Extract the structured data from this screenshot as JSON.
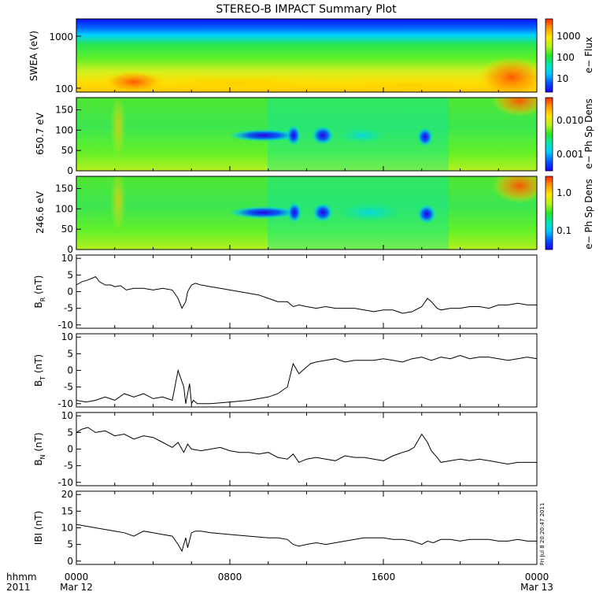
{
  "title": "STEREO-B IMPACT Summary Plot",
  "footer": {
    "hhmm": "hhmm",
    "year": "2011",
    "x_ticks": [
      "0000",
      "0800",
      "1600",
      "0000"
    ],
    "x_sub": [
      "Mar 12",
      "",
      "",
      "Mar 13"
    ]
  },
  "stamp": "Fri Jul 8 20:20:47 2011",
  "colorbars": {
    "swea": {
      "label": "e− Flux",
      "ticks": [
        "1000",
        "100",
        "10"
      ]
    },
    "p650": {
      "label": "e− Ph Sp Dens",
      "ticks": [
        "0.010",
        "0.001"
      ]
    },
    "p246": {
      "label": "e− Ph Sp Dens",
      "ticks": [
        "1.0",
        "0.1"
      ]
    }
  },
  "colors": {
    "frame": "#000000",
    "line": "#000000",
    "colormap": [
      "#1a00ff",
      "#0050ff",
      "#00c8ff",
      "#00e6b4",
      "#28e628",
      "#b4f01e",
      "#ffe600",
      "#ff9600",
      "#ff2800"
    ]
  },
  "chart_data": [
    {
      "type": "heatmap",
      "name": "swea",
      "ylabel": "SWEA (eV)",
      "yticks": [
        "1000",
        "100"
      ],
      "x_hours": [
        0,
        24
      ]
    },
    {
      "type": "heatmap",
      "name": "p650",
      "ylabel": "650.7 eV",
      "yticks": [
        "150",
        "100",
        "50",
        "0"
      ],
      "ylim": [
        0,
        180
      ]
    },
    {
      "type": "heatmap",
      "name": "p246",
      "ylabel": "246.6 eV",
      "yticks": [
        "150",
        "100",
        "50",
        "0"
      ],
      "ylim": [
        0,
        180
      ]
    },
    {
      "type": "line",
      "name": "br",
      "ylabel_main": "B",
      "ylabel_sub": "R",
      "ylabel_unit": " (nT)",
      "yticks": [
        "10",
        "5",
        "0",
        "-5",
        "-10"
      ],
      "ylim": [
        -11,
        11
      ],
      "x": [
        0,
        0.3,
        0.6,
        1.0,
        1.2,
        1.5,
        1.8,
        2.0,
        2.3,
        2.6,
        3.0,
        3.5,
        4.0,
        4.5,
        5.0,
        5.3,
        5.5,
        5.7,
        5.8,
        6.0,
        6.2,
        6.5,
        7.0,
        7.5,
        8.0,
        8.5,
        9.0,
        9.5,
        10.0,
        10.5,
        11.0,
        11.3,
        11.6,
        12.0,
        12.5,
        13.0,
        13.5,
        14.0,
        14.5,
        15.0,
        15.5,
        16.0,
        16.5,
        17.0,
        17.5,
        18.0,
        18.3,
        18.5,
        18.8,
        19.0,
        19.5,
        20.0,
        20.5,
        21.0,
        21.5,
        22.0,
        22.5,
        23.0,
        23.5,
        24.0
      ],
      "y": [
        2.0,
        3.0,
        3.5,
        4.5,
        3.0,
        2.0,
        2.0,
        1.5,
        1.8,
        0.5,
        1.0,
        1.0,
        0.5,
        1.0,
        0.5,
        -2.0,
        -5.0,
        -3.0,
        0.0,
        2.0,
        2.5,
        2.0,
        1.5,
        1.0,
        0.5,
        0.0,
        -0.5,
        -1.0,
        -2.0,
        -3.0,
        -3.0,
        -4.5,
        -4.0,
        -4.5,
        -5.0,
        -4.5,
        -5.0,
        -5.0,
        -5.0,
        -5.5,
        -6.0,
        -5.5,
        -5.5,
        -6.5,
        -6.0,
        -4.5,
        -2.0,
        -3.0,
        -5.0,
        -5.5,
        -5.0,
        -5.0,
        -4.5,
        -4.5,
        -5.0,
        -4.0,
        -4.0,
        -3.5,
        -4.0,
        -4.0
      ]
    },
    {
      "type": "line",
      "name": "bt",
      "ylabel_main": "B",
      "ylabel_sub": "T",
      "ylabel_unit": " (nT)",
      "yticks": [
        "10",
        "5",
        "0",
        "-5",
        "-10"
      ],
      "ylim": [
        -11,
        11
      ],
      "x": [
        0,
        0.5,
        1.0,
        1.5,
        2.0,
        2.5,
        3.0,
        3.5,
        4.0,
        4.5,
        5.0,
        5.3,
        5.6,
        5.7,
        5.9,
        6.0,
        6.1,
        6.3,
        6.5,
        7.0,
        8.0,
        9.0,
        10.0,
        10.5,
        11.0,
        11.3,
        11.6,
        11.8,
        12.0,
        12.2,
        12.5,
        13.0,
        13.5,
        14.0,
        14.5,
        15.0,
        15.5,
        16.0,
        16.5,
        17.0,
        17.5,
        18.0,
        18.5,
        19.0,
        19.5,
        20.0,
        20.5,
        21.0,
        21.5,
        22.0,
        22.5,
        23.0,
        23.5,
        24.0
      ],
      "y": [
        -9.0,
        -9.5,
        -9.0,
        -8.0,
        -9.0,
        -7.0,
        -8.0,
        -7.0,
        -8.5,
        -8.0,
        -9.0,
        0.0,
        -5.0,
        -10.0,
        -4.0,
        -10.0,
        -9.0,
        -10.0,
        -10.0,
        -10.0,
        -9.5,
        -9.0,
        -8.0,
        -7.0,
        -5.0,
        2.0,
        -1.0,
        0.0,
        1.0,
        2.0,
        2.5,
        3.0,
        3.5,
        2.5,
        3.0,
        3.0,
        3.0,
        3.5,
        3.0,
        2.5,
        3.5,
        4.0,
        3.0,
        4.0,
        3.5,
        4.5,
        3.5,
        4.0,
        4.0,
        3.5,
        3.0,
        3.5,
        4.0,
        3.5
      ]
    },
    {
      "type": "line",
      "name": "bn",
      "ylabel_main": "B",
      "ylabel_sub": "N",
      "ylabel_unit": " (nT)",
      "yticks": [
        "10",
        "5",
        "0",
        "-5",
        "-10"
      ],
      "ylim": [
        -11,
        11
      ],
      "x": [
        0,
        0.3,
        0.6,
        1.0,
        1.5,
        2.0,
        2.5,
        3.0,
        3.5,
        4.0,
        4.5,
        5.0,
        5.3,
        5.6,
        5.8,
        6.0,
        6.5,
        7.0,
        7.5,
        8.0,
        8.5,
        9.0,
        9.5,
        10.0,
        10.5,
        11.0,
        11.3,
        11.6,
        12.0,
        12.5,
        13.0,
        13.5,
        14.0,
        14.5,
        15.0,
        15.5,
        16.0,
        16.5,
        17.0,
        17.3,
        17.6,
        18.0,
        18.3,
        18.5,
        18.8,
        19.0,
        19.5,
        20.0,
        20.5,
        21.0,
        21.5,
        22.0,
        22.5,
        23.0,
        23.5,
        24.0
      ],
      "y": [
        5.0,
        6.0,
        6.5,
        5.0,
        5.5,
        4.0,
        4.5,
        3.0,
        4.0,
        3.5,
        2.0,
        0.5,
        2.0,
        -1.0,
        1.5,
        0.0,
        -0.5,
        0.0,
        0.5,
        -0.5,
        -1.0,
        -1.0,
        -1.5,
        -1.0,
        -2.5,
        -3.0,
        -1.5,
        -4.0,
        -3.0,
        -2.5,
        -3.0,
        -3.5,
        -2.0,
        -2.5,
        -2.5,
        -3.0,
        -3.5,
        -2.0,
        -1.0,
        -0.5,
        0.5,
        4.5,
        2.0,
        -0.5,
        -2.5,
        -4.0,
        -3.5,
        -3.0,
        -3.5,
        -3.0,
        -3.5,
        -4.0,
        -4.5,
        -4.0,
        -4.0,
        -4.0
      ]
    },
    {
      "type": "line",
      "name": "bmag",
      "ylabel_main": "IBI",
      "ylabel_sub": "",
      "ylabel_unit": " (nT)",
      "yticks": [
        "20",
        "15",
        "10",
        "5",
        "0"
      ],
      "ylim": [
        -1,
        21
      ],
      "x": [
        0,
        0.5,
        1.0,
        1.5,
        2.0,
        2.5,
        3.0,
        3.5,
        4.0,
        4.5,
        5.0,
        5.3,
        5.5,
        5.7,
        5.8,
        6.0,
        6.2,
        6.5,
        7.0,
        8.0,
        9.0,
        10.0,
        10.5,
        11.0,
        11.3,
        11.6,
        12.0,
        12.5,
        13.0,
        13.5,
        14.0,
        14.5,
        15.0,
        15.5,
        16.0,
        16.5,
        17.0,
        17.5,
        18.0,
        18.3,
        18.6,
        19.0,
        19.5,
        20.0,
        20.5,
        21.0,
        21.5,
        22.0,
        22.5,
        23.0,
        23.5,
        24.0
      ],
      "y": [
        11.0,
        10.5,
        10.0,
        9.5,
        9.0,
        8.5,
        7.5,
        9.0,
        8.5,
        8.0,
        7.5,
        5.0,
        3.0,
        7.0,
        4.0,
        8.5,
        9.0,
        9.0,
        8.5,
        8.0,
        7.5,
        7.0,
        7.0,
        6.5,
        5.0,
        4.5,
        5.0,
        5.5,
        5.0,
        5.5,
        6.0,
        6.5,
        7.0,
        7.0,
        7.0,
        6.5,
        6.5,
        6.0,
        5.0,
        6.0,
        5.5,
        6.5,
        6.5,
        6.0,
        6.5,
        6.5,
        6.5,
        6.0,
        6.0,
        6.5,
        6.0,
        6.0
      ]
    }
  ]
}
